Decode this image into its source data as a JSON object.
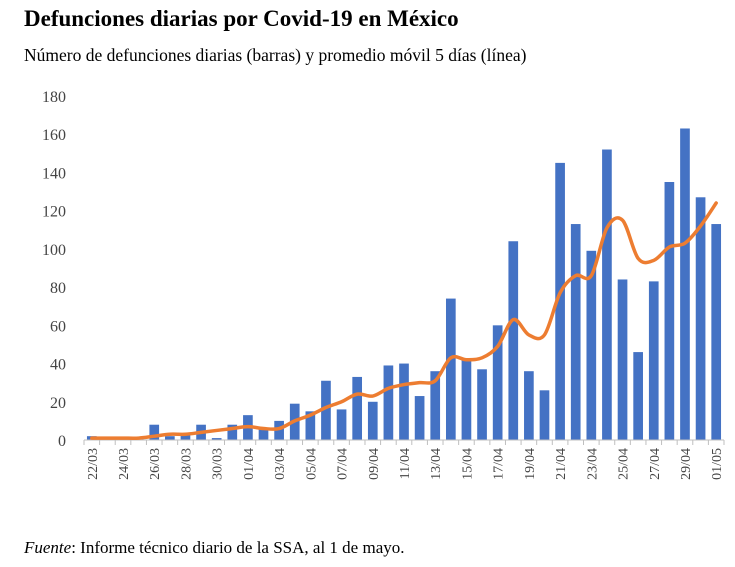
{
  "title": "Defunciones diarias por Covid-19 en México",
  "subtitle": "Número de defunciones diarias (barras) y promedio móvil 5 días (línea)",
  "source": {
    "label": "Fuente",
    "text": ": Informe técnico diario de la SSA, al 1 de mayo."
  },
  "chart_data": {
    "type": "bar",
    "title": "Defunciones diarias por Covid-19 en México",
    "subtitle": "Número de defunciones diarias (barras) y promedio móvil 5 días (línea)",
    "categories": [
      "22/03",
      "23/03",
      "24/03",
      "25/03",
      "26/03",
      "27/03",
      "28/03",
      "29/03",
      "30/03",
      "31/03",
      "01/04",
      "02/04",
      "03/04",
      "04/04",
      "05/04",
      "06/04",
      "07/04",
      "08/04",
      "09/04",
      "10/04",
      "11/04",
      "12/04",
      "13/04",
      "14/04",
      "15/04",
      "16/04",
      "17/04",
      "18/04",
      "19/04",
      "20/04",
      "21/04",
      "22/04",
      "23/04",
      "24/04",
      "25/04",
      "26/04",
      "27/04",
      "28/04",
      "29/04",
      "30/04",
      "01/05"
    ],
    "x_tick_labels": [
      "22/03",
      "24/03",
      "26/03",
      "28/03",
      "30/03",
      "01/04",
      "03/04",
      "05/04",
      "07/04",
      "09/04",
      "11/04",
      "13/04",
      "15/04",
      "17/04",
      "19/04",
      "21/04",
      "23/04",
      "25/04",
      "27/04",
      "29/04",
      "01/05"
    ],
    "series": [
      {
        "type": "bar",
        "color": "#4472C4",
        "values": [
          2,
          0,
          0,
          1,
          8,
          2,
          3,
          8,
          1,
          8,
          13,
          6,
          10,
          19,
          15,
          31,
          16,
          33,
          20,
          39,
          40,
          23,
          36,
          74,
          42,
          37,
          60,
          104,
          36,
          26,
          145,
          113,
          99,
          152,
          84,
          46,
          83,
          135,
          163,
          127,
          113
        ]
      },
      {
        "type": "line",
        "color": "#ED7D31",
        "values": [
          1,
          1,
          1,
          1,
          2,
          3,
          3,
          4,
          5,
          6,
          7,
          6,
          6,
          10,
          13,
          17,
          20,
          24,
          23,
          27,
          29,
          30,
          31,
          43,
          42,
          43,
          49,
          63,
          55,
          55,
          77,
          86,
          86,
          111,
          115,
          95,
          94,
          101,
          103,
          112,
          124
        ]
      }
    ],
    "ylim": [
      0,
      180
    ],
    "yticks": [
      0,
      20,
      40,
      60,
      80,
      100,
      120,
      140,
      160,
      180
    ],
    "grid": false,
    "legend": "none"
  }
}
